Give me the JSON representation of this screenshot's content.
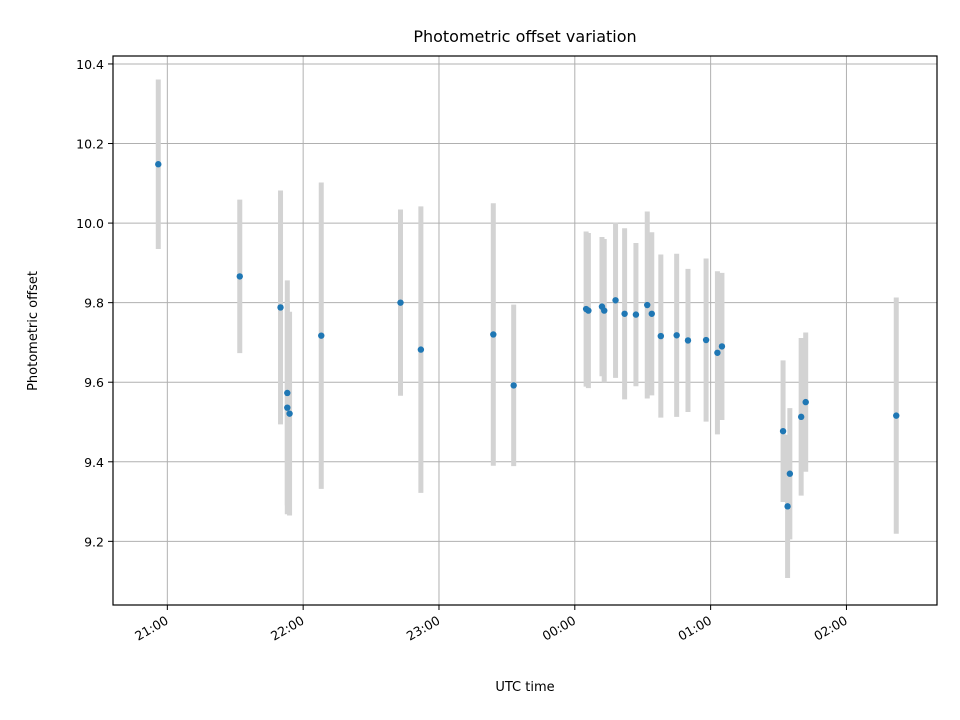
{
  "chart_data": {
    "type": "scatter",
    "title": "Photometric offset variation",
    "xlabel": "UTC time",
    "ylabel": "Photometric offset",
    "xlim": [
      "20:36",
      "26:40"
    ],
    "ylim": [
      9.04,
      10.42
    ],
    "x_ticks": [
      "21:00",
      "22:00",
      "23:00",
      "00:00",
      "01:00",
      "02:00"
    ],
    "y_ticks": [
      "9.2",
      "9.4",
      "9.6",
      "9.8",
      "10.0",
      "10.2",
      "10.4"
    ],
    "grid": true,
    "colors": {
      "points": "#1f77b4",
      "errorbars": "#d3d3d3",
      "grid": "#b0b0b0"
    },
    "points": [
      {
        "t": "20:56",
        "y": 10.148,
        "err": 0.213
      },
      {
        "t": "21:32",
        "y": 9.866,
        "err": 0.193
      },
      {
        "t": "21:50",
        "y": 9.788,
        "err": 0.294
      },
      {
        "t": "21:53",
        "y": 9.573,
        "err": 0.283
      },
      {
        "t": "21:53",
        "y": 9.536,
        "err": 0.268
      },
      {
        "t": "21:54",
        "y": 9.521,
        "err": 0.256
      },
      {
        "t": "22:08",
        "y": 9.717,
        "err": 0.385
      },
      {
        "t": "22:43",
        "y": 9.8,
        "err": 0.234
      },
      {
        "t": "22:52",
        "y": 9.682,
        "err": 0.36
      },
      {
        "t": "23:24",
        "y": 9.72,
        "err": 0.33
      },
      {
        "t": "23:33",
        "y": 9.592,
        "err": 0.203
      },
      {
        "t": "24:05",
        "y": 9.784,
        "err": 0.195
      },
      {
        "t": "24:06",
        "y": 9.78,
        "err": 0.195
      },
      {
        "t": "24:12",
        "y": 9.79,
        "err": 0.175
      },
      {
        "t": "24:13",
        "y": 9.78,
        "err": 0.18
      },
      {
        "t": "24:18",
        "y": 9.806,
        "err": 0.195
      },
      {
        "t": "24:22",
        "y": 9.772,
        "err": 0.215
      },
      {
        "t": "24:27",
        "y": 9.77,
        "err": 0.18
      },
      {
        "t": "24:32",
        "y": 9.794,
        "err": 0.235
      },
      {
        "t": "24:34",
        "y": 9.772,
        "err": 0.205
      },
      {
        "t": "24:38",
        "y": 9.716,
        "err": 0.205
      },
      {
        "t": "24:45",
        "y": 9.718,
        "err": 0.205
      },
      {
        "t": "24:50",
        "y": 9.705,
        "err": 0.18
      },
      {
        "t": "24:58",
        "y": 9.706,
        "err": 0.205
      },
      {
        "t": "25:03",
        "y": 9.674,
        "err": 0.205
      },
      {
        "t": "25:05",
        "y": 9.69,
        "err": 0.185
      },
      {
        "t": "25:32",
        "y": 9.477,
        "err": 0.178
      },
      {
        "t": "25:34",
        "y": 9.288,
        "err": 0.18
      },
      {
        "t": "25:35",
        "y": 9.37,
        "err": 0.165
      },
      {
        "t": "25:40",
        "y": 9.513,
        "err": 0.198
      },
      {
        "t": "25:42",
        "y": 9.55,
        "err": 0.175
      },
      {
        "t": "26:22",
        "y": 9.516,
        "err": 0.297
      }
    ]
  }
}
